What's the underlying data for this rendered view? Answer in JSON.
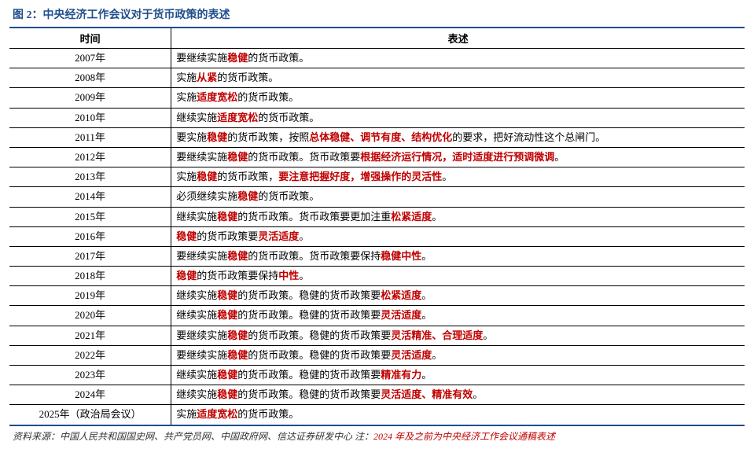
{
  "title": "图 2：中央经济工作会议对于货币政策的表述",
  "headers": {
    "time": "时间",
    "desc": "表述"
  },
  "colors": {
    "title": "#1f4e8c",
    "border": "#1f4e8c",
    "highlight": "#c00000",
    "text": "#000000",
    "background": "#ffffff"
  },
  "rows": [
    {
      "time": "2007年",
      "segments": [
        {
          "t": "要继续实施"
        },
        {
          "t": "稳健",
          "h": 1
        },
        {
          "t": "的货币政策。"
        }
      ]
    },
    {
      "time": "2008年",
      "segments": [
        {
          "t": "实施"
        },
        {
          "t": "从紧",
          "h": 1
        },
        {
          "t": "的货币政策。"
        }
      ]
    },
    {
      "time": "2009年",
      "segments": [
        {
          "t": "实施"
        },
        {
          "t": "适度宽松",
          "h": 1
        },
        {
          "t": "的货币政策。"
        }
      ]
    },
    {
      "time": "2010年",
      "segments": [
        {
          "t": "继续实施"
        },
        {
          "t": "适度宽松",
          "h": 1
        },
        {
          "t": "的货币政策。"
        }
      ]
    },
    {
      "time": "2011年",
      "segments": [
        {
          "t": "要实施"
        },
        {
          "t": "稳健",
          "h": 1
        },
        {
          "t": "的货币政策，按照"
        },
        {
          "t": "总体稳健、调节有度、结构优化",
          "h": 1
        },
        {
          "t": "的要求，把好流动性这个总闸门。"
        }
      ]
    },
    {
      "time": "2012年",
      "segments": [
        {
          "t": "要继续实施"
        },
        {
          "t": "稳健",
          "h": 1
        },
        {
          "t": "的货币政策。货币政策要"
        },
        {
          "t": "根据经济运行情况，适时适度进行预调微调",
          "h": 1
        },
        {
          "t": "。"
        }
      ]
    },
    {
      "time": "2013年",
      "segments": [
        {
          "t": "实施"
        },
        {
          "t": "稳健",
          "h": 1
        },
        {
          "t": "的货币政策，"
        },
        {
          "t": "要注意把握好度，增强操作的灵活性",
          "h": 1
        },
        {
          "t": "。"
        }
      ]
    },
    {
      "time": "2014年",
      "segments": [
        {
          "t": "必须继续实施"
        },
        {
          "t": "稳健",
          "h": 1
        },
        {
          "t": "的货币政策。"
        }
      ]
    },
    {
      "time": "2015年",
      "segments": [
        {
          "t": "继续实施"
        },
        {
          "t": "稳健",
          "h": 1
        },
        {
          "t": "的货币政策。货币政策要更加注重"
        },
        {
          "t": "松紧适度",
          "h": 1
        },
        {
          "t": "。"
        }
      ]
    },
    {
      "time": "2016年",
      "segments": [
        {
          "t": "稳健",
          "h": 1
        },
        {
          "t": "的货币政策要"
        },
        {
          "t": "灵活适度",
          "h": 1
        },
        {
          "t": "。"
        }
      ]
    },
    {
      "time": "2017年",
      "segments": [
        {
          "t": "要继续实施"
        },
        {
          "t": "稳健",
          "h": 1
        },
        {
          "t": "的货币政策。货币政策要保持"
        },
        {
          "t": "稳健中性",
          "h": 1
        },
        {
          "t": "。"
        }
      ]
    },
    {
      "time": "2018年",
      "segments": [
        {
          "t": "稳健",
          "h": 1
        },
        {
          "t": "的货币政策要保持"
        },
        {
          "t": "中性",
          "h": 1
        },
        {
          "t": "。"
        }
      ]
    },
    {
      "time": "2019年",
      "segments": [
        {
          "t": "继续实施"
        },
        {
          "t": "稳健",
          "h": 1
        },
        {
          "t": "的货币政策。稳健的货币政策要"
        },
        {
          "t": "松紧适度",
          "h": 1
        },
        {
          "t": "。"
        }
      ]
    },
    {
      "time": "2020年",
      "segments": [
        {
          "t": "继续实施"
        },
        {
          "t": "稳健",
          "h": 1
        },
        {
          "t": "的货币政策。稳健的货币政策要"
        },
        {
          "t": "灵活适度",
          "h": 1
        },
        {
          "t": "。"
        }
      ]
    },
    {
      "time": "2021年",
      "segments": [
        {
          "t": "要继续实施"
        },
        {
          "t": "稳健",
          "h": 1
        },
        {
          "t": "的货币政策。稳健的货币政策要"
        },
        {
          "t": "灵活精准、合理适度",
          "h": 1
        },
        {
          "t": "。"
        }
      ]
    },
    {
      "time": "2022年",
      "segments": [
        {
          "t": "要继续实施"
        },
        {
          "t": "稳健",
          "h": 1
        },
        {
          "t": "的货币政策。稳健的货币政策要"
        },
        {
          "t": "灵活适度",
          "h": 1
        },
        {
          "t": "。"
        }
      ]
    },
    {
      "time": "2023年",
      "segments": [
        {
          "t": "继续实施"
        },
        {
          "t": "稳健",
          "h": 1
        },
        {
          "t": "的货币政策。稳健的货币政策要"
        },
        {
          "t": "精准有力",
          "h": 1
        },
        {
          "t": "。"
        }
      ]
    },
    {
      "time": "2024年",
      "segments": [
        {
          "t": "继续实施"
        },
        {
          "t": "稳健",
          "h": 1
        },
        {
          "t": "的货币政策。稳健的货币政策要"
        },
        {
          "t": "灵活适度、精准有效",
          "h": 1
        },
        {
          "t": "。"
        }
      ]
    },
    {
      "time": "2025年（政治局会议）",
      "segments": [
        {
          "t": "实施"
        },
        {
          "t": "适度宽松",
          "h": 1
        },
        {
          "t": "的货币政策。"
        }
      ]
    }
  ],
  "source": {
    "prefix": "资料来源：中国人民共和国国史网、共产党员网、中国政府网、信达证券研发中心  注：",
    "red": "2024 年及之前为中央经济工作会议通稿表述"
  }
}
